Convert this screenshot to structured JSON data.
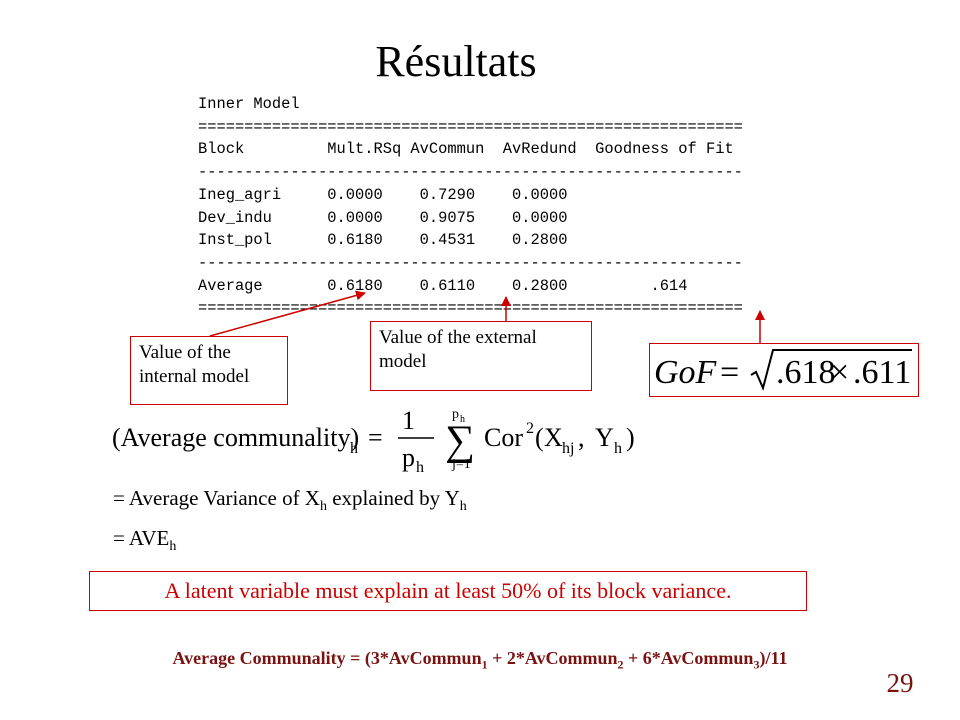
{
  "title": "Résultats",
  "output": {
    "heading": "Inner Model",
    "rule_double": "===========================================================",
    "rule_single": "-----------------------------------------------------------",
    "columns": [
      "Block",
      "Mult.RSq",
      "AvCommun",
      "AvRedund",
      "Goodness of Fit"
    ],
    "rows": [
      [
        "Ineg_agri",
        "0.0000",
        "0.7290",
        "0.0000",
        ""
      ],
      [
        "Dev_indu",
        "0.0000",
        "0.9075",
        "0.0000",
        ""
      ],
      [
        "Inst_pol",
        "0.6180",
        "0.4531",
        "0.2800",
        ""
      ]
    ],
    "average_row": [
      "Average",
      "0.6180",
      "0.6110",
      "0.2800",
      ".614"
    ]
  },
  "callouts": {
    "internal": "Value of the internal model",
    "external": "Value of the external model"
  },
  "gof_formula": {
    "lhs": "GoF",
    "equals": "=",
    "a": ".618",
    "times": "×",
    "b": ".611"
  },
  "community_formula": {
    "lhs": "(Average communality)",
    "lhs_sub": "h",
    "equals": "=",
    "frac_num": "1",
    "frac_den": "p",
    "frac_den_sub": "h",
    "sum": "∑",
    "sum_top": "p",
    "sum_top_sub": "h",
    "sum_bottom": "j=1",
    "cor": "Cor",
    "cor_sup": "2",
    "x": "X",
    "x_sub": "hj",
    "comma": ",",
    "y": "Y",
    "y_sub": "h",
    "close": ")"
  },
  "explanation": {
    "line1_prefix": "=  Average Variance of  X",
    "line1_sub1": "h",
    "line1_mid": "  explained by Y",
    "line1_sub2": "h",
    "line2_prefix": "=  AVE",
    "line2_sub": "h"
  },
  "note": "A latent variable must explain at least 50%  of its block variance.",
  "average_communality": {
    "prefix": "Average Communality = (3*AvCommun",
    "s1": "1",
    "mid1": " + 2*AvCommun",
    "s2": "2",
    "mid2": " + 6*AvCommun",
    "s3": "3",
    "suffix": ")/11"
  },
  "page_number": "29",
  "colors": {
    "callout_border": "#cc0000",
    "note_text": "#cc0000",
    "bottom_text": "#7a1212"
  }
}
